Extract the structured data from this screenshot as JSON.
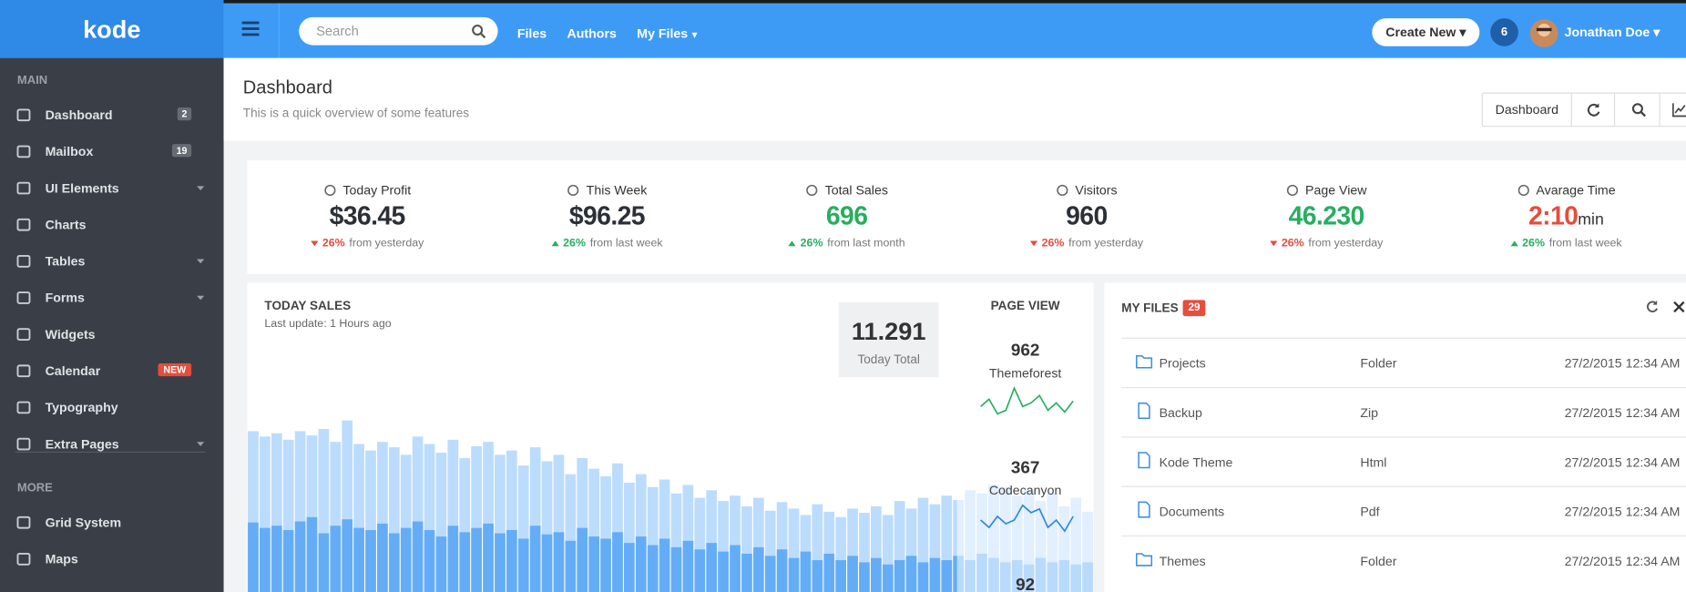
{
  "logo": "kode",
  "topbar": {
    "search": "Search",
    "links": [
      {
        "label": "Files"
      },
      {
        "label": "Authors"
      },
      {
        "label": "My Files",
        "dropdown": true
      }
    ],
    "create": "Create New",
    "notifications": 6,
    "user": "Jonathan Doe"
  },
  "sidebar": {
    "sections": [
      {
        "title": "MAIN",
        "items": [
          {
            "label": "Dashboard",
            "badge": 2
          },
          {
            "label": "Mailbox",
            "badge": 19
          },
          {
            "label": "UI Elements",
            "submenu": true
          },
          {
            "label": "Charts"
          },
          {
            "label": "Tables",
            "submenu": true
          },
          {
            "label": "Forms",
            "submenu": true
          },
          {
            "label": "Widgets"
          },
          {
            "label": "Calendar",
            "tag": "NEW"
          },
          {
            "label": "Typography"
          },
          {
            "label": "Extra Pages",
            "submenu": true
          }
        ]
      },
      {
        "title": "MORE",
        "items": [
          {
            "label": "Grid System"
          },
          {
            "label": "Maps"
          }
        ]
      }
    ]
  },
  "header": {
    "title": "Dashboard",
    "subtitle": "This is a quick overview of some features",
    "button": "Dashboard"
  },
  "stats": [
    {
      "label": "Today Profit",
      "value": "$36.45",
      "value_color": "#2b3038",
      "change": "26%",
      "trend": "down",
      "note": "from yesterday"
    },
    {
      "label": "This Week",
      "value": "$96.25",
      "value_color": "#2b3038",
      "change": "26%",
      "trend": "up",
      "note": "from last week"
    },
    {
      "label": "Total Sales",
      "value": 696,
      "value_color": "#27ae60",
      "change": "26%",
      "trend": "up",
      "note": "from last month"
    },
    {
      "label": "Visitors",
      "value": 960,
      "value_color": "#2b3038",
      "change": "26%",
      "trend": "down",
      "note": "from yesterday"
    },
    {
      "label": "Page View",
      "value": "46.230",
      "value_color": "#27ae60",
      "change": "26%",
      "trend": "down",
      "note": "from yesterday"
    },
    {
      "label": "Avarage Time",
      "value": "2:10",
      "unit": "min",
      "value_color": "#e74c3c",
      "change": "26%",
      "trend": "up",
      "note": "from last week"
    }
  ],
  "today_sales": {
    "title": "TODAY SALES",
    "subtitle": "Last update: 1 Hours ago",
    "total": "11.291",
    "total_label": "Today Total",
    "chart": {
      "type": "bar",
      "ylim": [
        0,
        170
      ],
      "series": [
        {
          "color": "#bcdcfd",
          "values": [
            150,
            145,
            148,
            142,
            150,
            146,
            152,
            140,
            160,
            138,
            132,
            140,
            135,
            128,
            145,
            138,
            130,
            142,
            125,
            136,
            140,
            128,
            132,
            118,
            135,
            122,
            128,
            110,
            125,
            115,
            108,
            120,
            102,
            110,
            98,
            105,
            92,
            100,
            88,
            95,
            85,
            90,
            80,
            88,
            76,
            84,
            78,
            72,
            82,
            75,
            70,
            78,
            74,
            80,
            72,
            85,
            78,
            88,
            82,
            90,
            86,
            95,
            92,
            100,
            98,
            90,
            95,
            85,
            92,
            80,
            88,
            75
          ]
        },
        {
          "color": "#64adf6",
          "values": [
            65,
            60,
            62,
            58,
            66,
            70,
            55,
            62,
            68,
            60,
            58,
            64,
            55,
            60,
            66,
            58,
            52,
            62,
            56,
            60,
            64,
            55,
            58,
            50,
            62,
            54,
            56,
            48,
            60,
            52,
            50,
            56,
            46,
            52,
            44,
            50,
            42,
            48,
            40,
            46,
            38,
            44,
            36,
            42,
            34,
            40,
            32,
            38,
            30,
            36,
            30,
            34,
            28,
            32,
            26,
            30,
            34,
            28,
            32,
            30,
            34,
            30,
            36,
            32,
            28,
            30,
            26,
            32,
            28,
            30,
            26,
            28
          ]
        }
      ]
    }
  },
  "page_view": {
    "title": "PAGE VIEW",
    "sources": [
      {
        "value": 962,
        "label": "Themeforest",
        "color": "#27ae60",
        "sparkline": [
          12,
          16,
          8,
          10,
          22,
          12,
          14,
          18,
          10,
          14,
          9,
          15
        ]
      },
      {
        "value": 367,
        "label": "Codecanyon",
        "color": "#2e86de",
        "sparkline": [
          12,
          8,
          14,
          10,
          12,
          20,
          16,
          18,
          8,
          12,
          6,
          14
        ]
      },
      {
        "value": 92
      }
    ]
  },
  "files": {
    "title": "MY FILES",
    "count": 29,
    "rows": [
      {
        "name": "Projects",
        "type": "Folder",
        "date": "27/2/2015 12:34 AM"
      },
      {
        "name": "Backup",
        "type": "Zip",
        "date": "27/2/2015 12:34 AM"
      },
      {
        "name": "Kode Theme",
        "type": "Html",
        "date": "27/2/2015 12:34 AM"
      },
      {
        "name": "Documents",
        "type": "Pdf",
        "date": "27/2/2015 12:34 AM"
      },
      {
        "name": "Themes",
        "type": "Folder",
        "date": "27/2/2015 12:34 AM"
      }
    ]
  }
}
